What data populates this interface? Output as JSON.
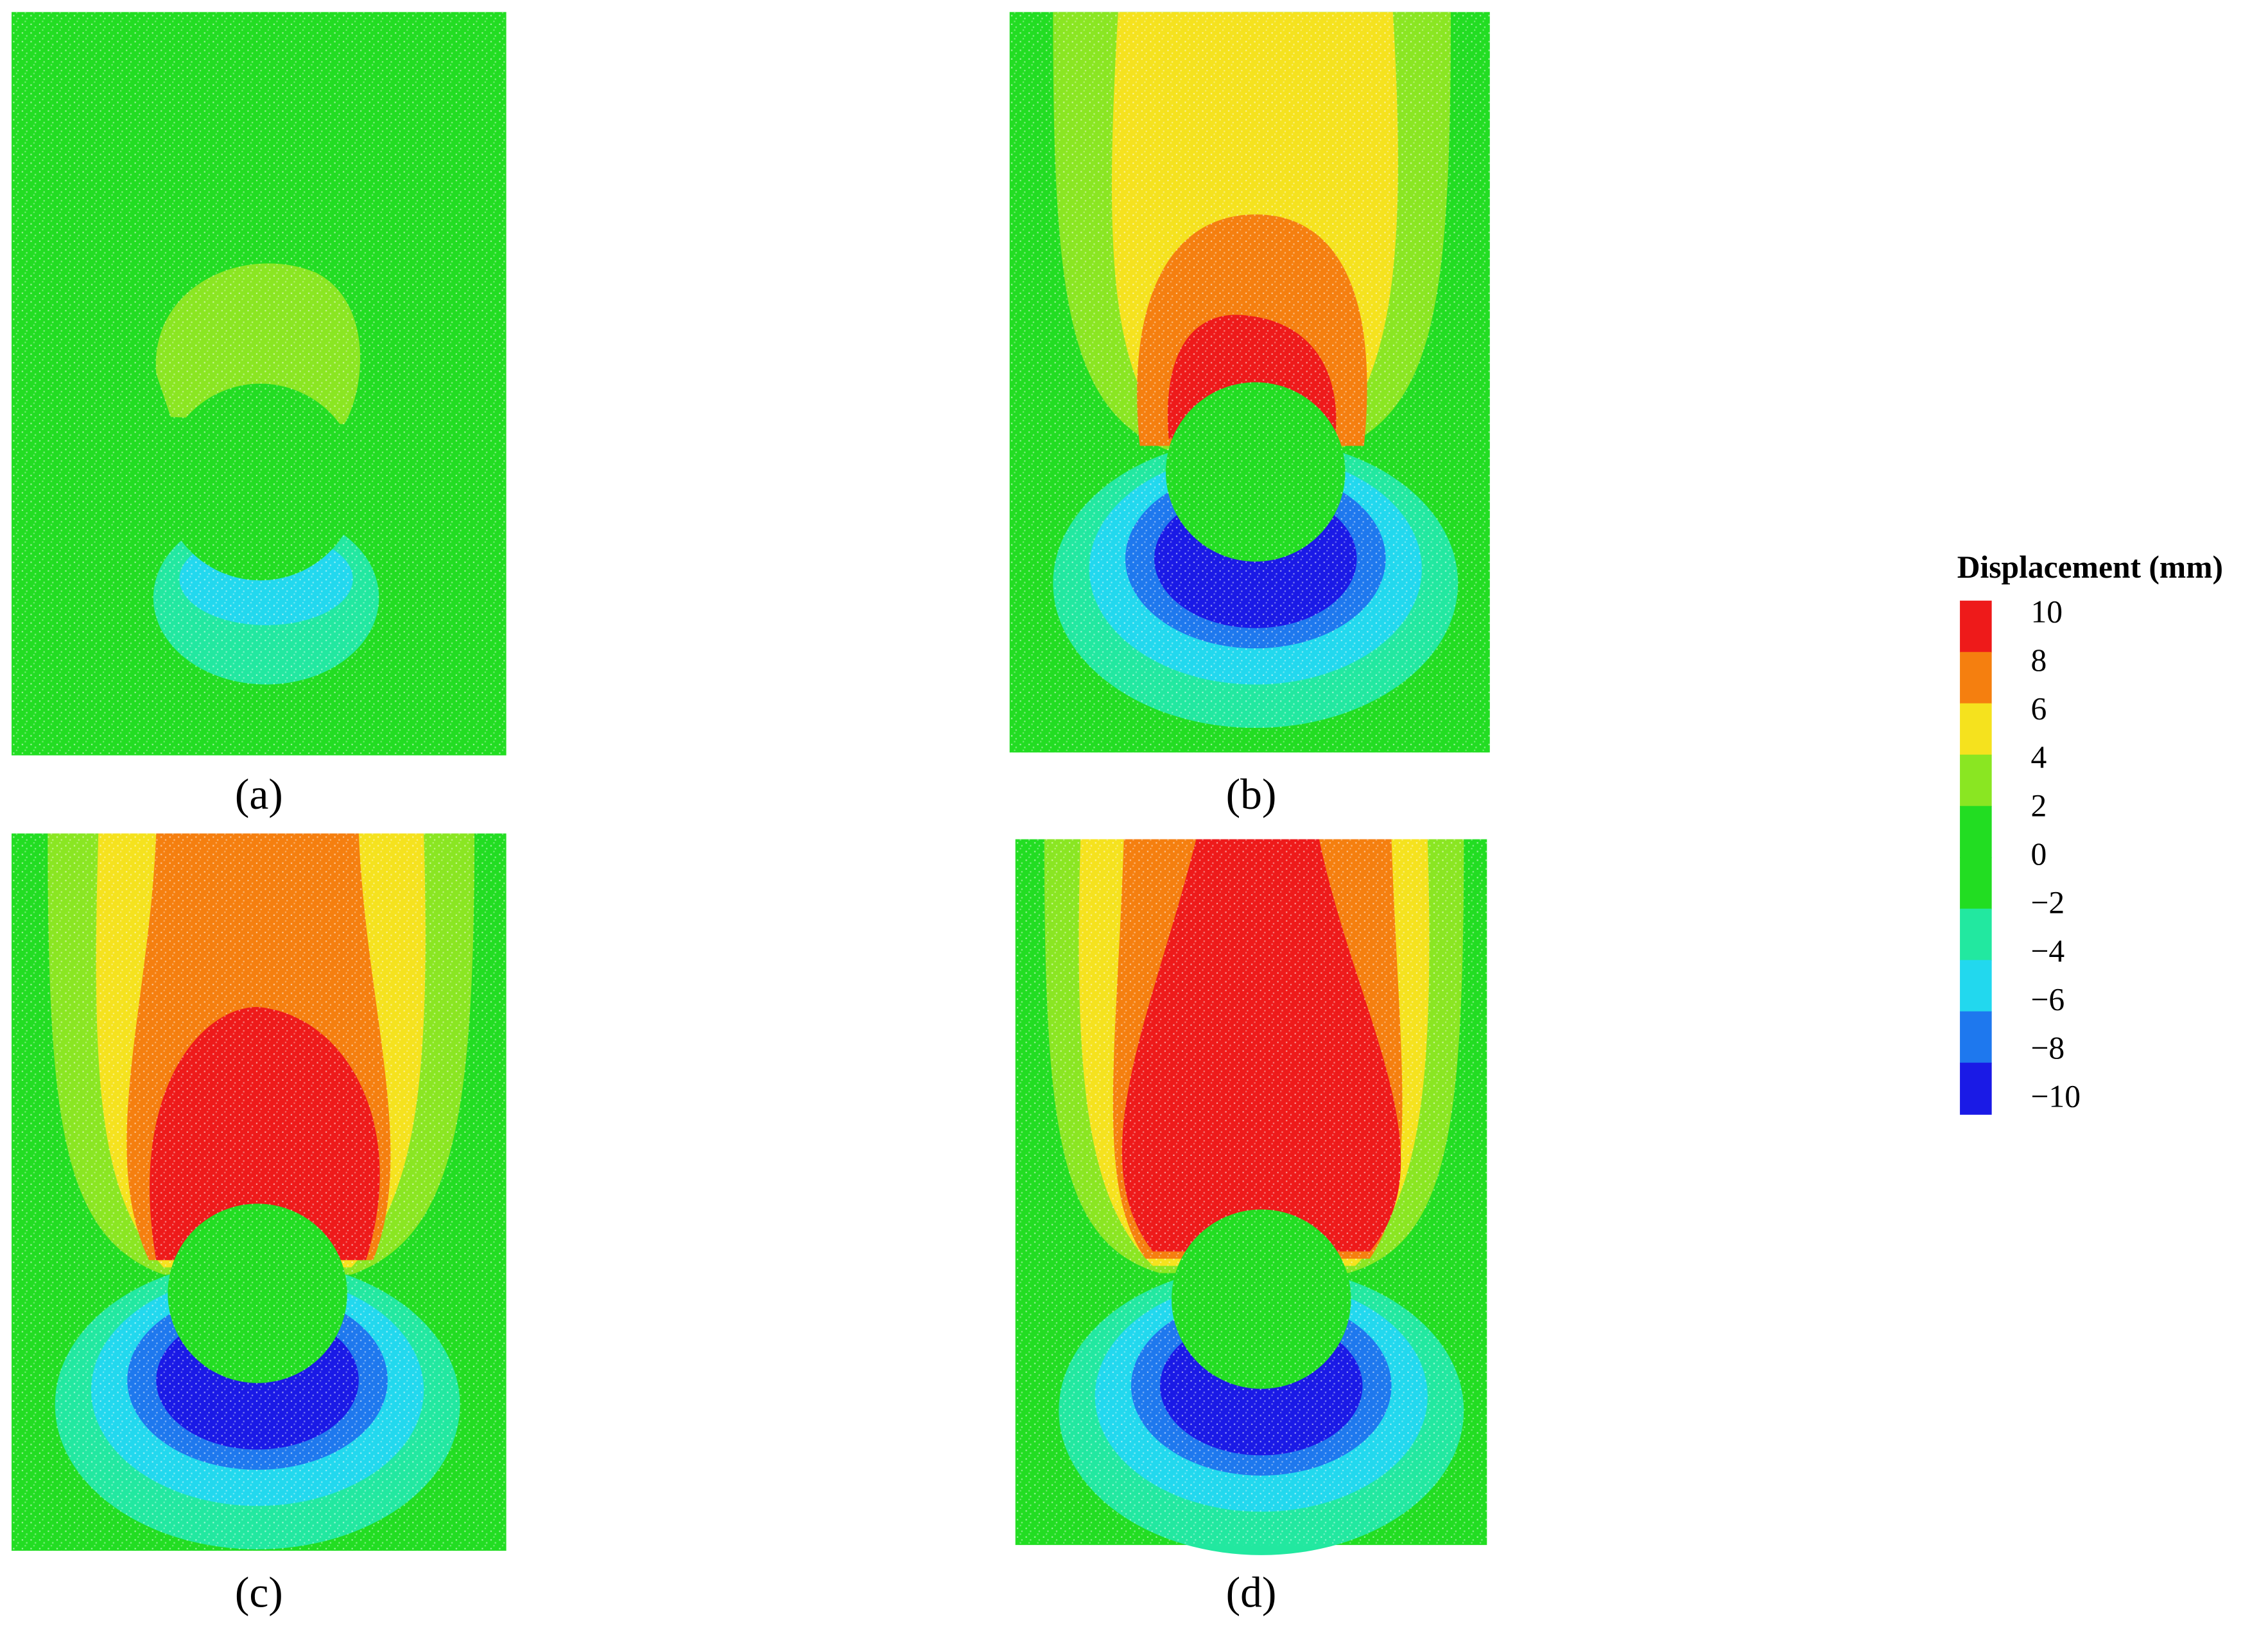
{
  "panels": [
    {
      "label": "(a)"
    },
    {
      "label": "(b)"
    },
    {
      "label": "(c)"
    },
    {
      "label": "(d)"
    }
  ],
  "legend": {
    "title": "Displacement (mm)",
    "levels": [
      "10",
      "8",
      "6",
      "4",
      "2",
      "0",
      "−2",
      "−4",
      "−6",
      "−8",
      "−10"
    ],
    "colors": [
      "#ee1a1a",
      "#f57f0f",
      "#f5e21e",
      "#8ae622",
      "#22dd22",
      "#22dd22",
      "#22e8a0",
      "#22d8ee",
      "#1e78ee",
      "#1a1ae6"
    ]
  }
}
